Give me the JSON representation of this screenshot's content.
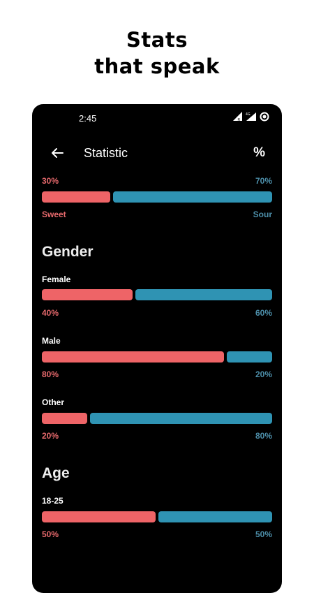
{
  "headline": {
    "line1": "Stats",
    "line2": "that speak"
  },
  "status_bar": {
    "time": "2:45"
  },
  "app_bar": {
    "title": "Statistic",
    "percent_icon_label": "%"
  },
  "taste": {
    "top_left": "30%",
    "top_right": "70%",
    "left_share": 0.3,
    "left_label": "Sweet",
    "right_label": "Sour"
  },
  "gender": {
    "title": "Gender",
    "rows": [
      {
        "label": "Female",
        "left": "40%",
        "right": "60%",
        "left_share": 0.4
      },
      {
        "label": "Male",
        "left": "80%",
        "right": "20%",
        "left_share": 0.8
      },
      {
        "label": "Other",
        "left": "20%",
        "right": "80%",
        "left_share": 0.2
      }
    ]
  },
  "age": {
    "title": "Age",
    "rows": [
      {
        "label": "18-25",
        "left": "50%",
        "right": "50%",
        "left_share": 0.5
      }
    ]
  },
  "colors": {
    "left": "#ee6467",
    "right": "#2f93b3",
    "background": "#000000"
  }
}
